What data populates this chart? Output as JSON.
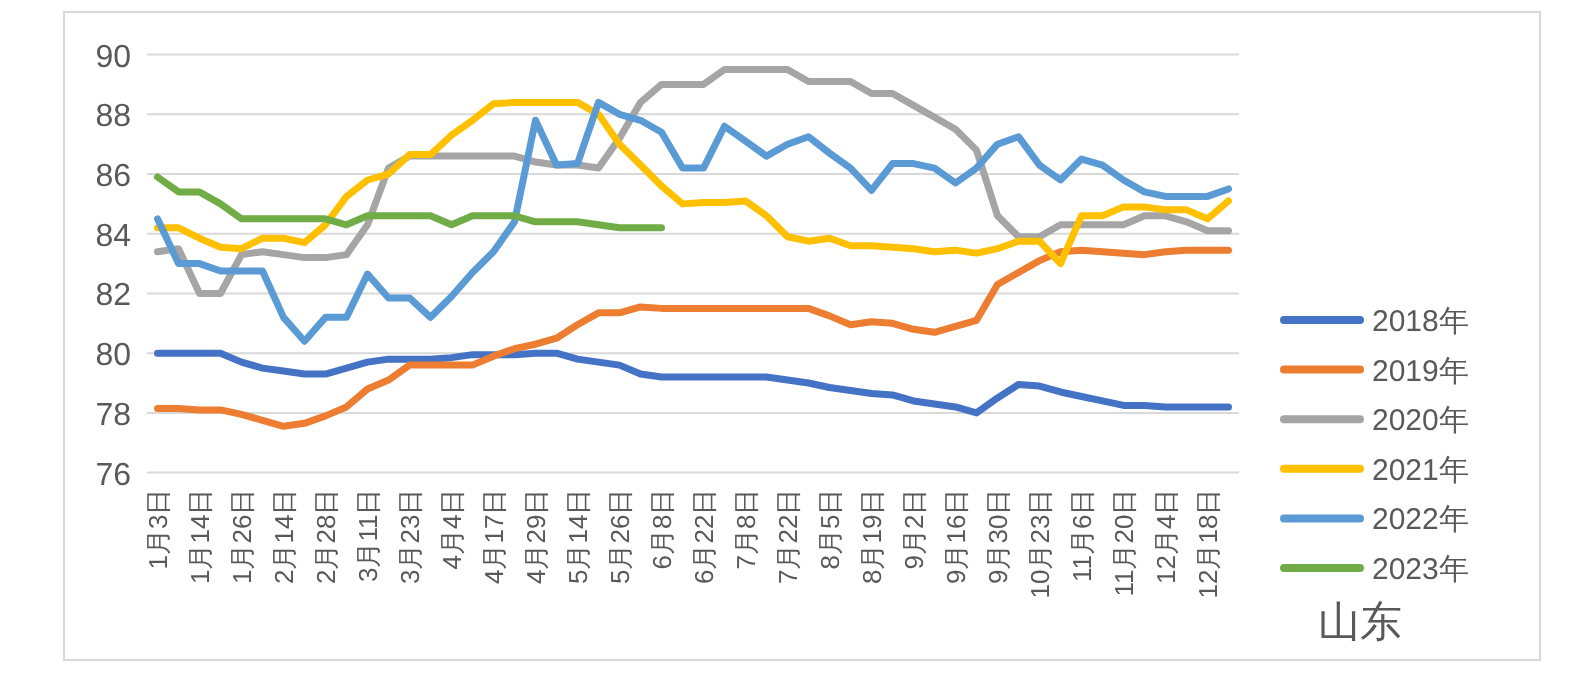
{
  "chart_data": {
    "type": "line",
    "categories": [
      "1月3日",
      null,
      "1月14日",
      null,
      "1月26日",
      null,
      "2月14日",
      null,
      "2月28日",
      null,
      "3月11日",
      null,
      "3月23日",
      null,
      "4月4日",
      null,
      "4月17日",
      null,
      "4月29日",
      null,
      "5月14日",
      null,
      "5月26日",
      null,
      "6月8日",
      null,
      "6月22日",
      null,
      "7月8日",
      null,
      "7月22日",
      null,
      "8月5日",
      null,
      "8月19日",
      null,
      "9月2日",
      null,
      "9月16日",
      null,
      "9月30日",
      null,
      "10月23日",
      null,
      "11月6日",
      null,
      "11月20日",
      null,
      "12月4日",
      null,
      "12月18日",
      null
    ],
    "series": [
      {
        "name": "2018年",
        "color": "#4472c4",
        "values": [
          80.0,
          80.0,
          80.0,
          80.0,
          79.7,
          79.5,
          79.4,
          79.3,
          79.3,
          79.5,
          79.7,
          79.8,
          79.8,
          79.8,
          79.85,
          79.95,
          79.95,
          79.95,
          80.0,
          80.0,
          79.8,
          79.7,
          79.6,
          79.3,
          79.2,
          79.2,
          79.2,
          79.2,
          79.2,
          79.2,
          79.1,
          79.0,
          78.85,
          78.75,
          78.65,
          78.6,
          78.4,
          78.3,
          78.2,
          78.0,
          78.5,
          78.95,
          78.9,
          78.7,
          78.55,
          78.4,
          78.25,
          78.25,
          78.2,
          78.2,
          78.2,
          78.2
        ]
      },
      {
        "name": "2019年",
        "color": "#ed7d31",
        "values": [
          78.15,
          78.15,
          78.1,
          78.1,
          77.95,
          77.75,
          77.55,
          77.65,
          77.9,
          78.2,
          78.8,
          79.1,
          79.6,
          79.6,
          79.6,
          79.6,
          79.9,
          80.15,
          80.3,
          80.5,
          80.95,
          81.35,
          81.35,
          81.55,
          81.5,
          81.5,
          81.5,
          81.5,
          81.5,
          81.5,
          81.5,
          81.5,
          81.25,
          80.95,
          81.05,
          81.0,
          80.8,
          80.7,
          80.9,
          81.1,
          82.3,
          82.7,
          83.1,
          83.4,
          83.45,
          83.4,
          83.35,
          83.3,
          83.4,
          83.45,
          83.45,
          83.45
        ]
      },
      {
        "name": "2020年",
        "color": "#a5a5a5",
        "values": [
          83.4,
          83.5,
          82.0,
          82.0,
          83.3,
          83.4,
          83.3,
          83.2,
          83.2,
          83.3,
          84.3,
          86.2,
          86.6,
          86.6,
          86.6,
          86.6,
          86.6,
          86.6,
          86.4,
          86.3,
          86.3,
          86.2,
          87.2,
          88.4,
          89.0,
          89.0,
          89.0,
          89.5,
          89.5,
          89.5,
          89.5,
          89.1,
          89.1,
          89.1,
          88.7,
          88.7,
          88.3,
          87.9,
          87.5,
          86.8,
          84.6,
          83.9,
          83.9,
          84.3,
          84.3,
          84.3,
          84.3,
          84.6,
          84.6,
          84.4,
          84.1,
          84.1
        ]
      },
      {
        "name": "2021年",
        "color": "#ffc000",
        "values": [
          84.2,
          84.2,
          83.85,
          83.55,
          83.5,
          83.85,
          83.85,
          83.7,
          84.3,
          85.25,
          85.8,
          86.0,
          86.65,
          86.65,
          87.3,
          87.8,
          88.35,
          88.4,
          88.4,
          88.4,
          88.4,
          88.0,
          87.0,
          86.3,
          85.6,
          85.0,
          85.05,
          85.05,
          85.1,
          84.6,
          83.9,
          83.75,
          83.85,
          83.6,
          83.6,
          83.55,
          83.5,
          83.4,
          83.45,
          83.35,
          83.5,
          83.75,
          83.75,
          83.0,
          84.6,
          84.6,
          84.9,
          84.9,
          84.8,
          84.8,
          84.5,
          85.1
        ]
      },
      {
        "name": "2022年",
        "color": "#5b9bd5",
        "values": [
          84.5,
          83.0,
          83.0,
          82.75,
          82.75,
          82.75,
          81.2,
          80.4,
          81.2,
          81.2,
          82.65,
          81.85,
          81.85,
          81.2,
          81.9,
          82.7,
          83.4,
          84.4,
          87.8,
          86.3,
          86.35,
          88.4,
          88.0,
          87.8,
          87.4,
          86.2,
          86.2,
          87.6,
          87.1,
          86.6,
          87.0,
          87.25,
          86.7,
          86.2,
          85.45,
          86.35,
          86.35,
          86.2,
          85.7,
          86.2,
          87.0,
          87.25,
          86.3,
          85.8,
          86.5,
          86.3,
          85.8,
          85.4,
          85.25,
          85.25,
          85.25,
          85.5
        ]
      },
      {
        "name": "2023年",
        "color": "#70ad47",
        "values": [
          85.9,
          85.4,
          85.4,
          85.0,
          84.5,
          84.5,
          84.5,
          84.5,
          84.5,
          84.3,
          84.6,
          84.6,
          84.6,
          84.6,
          84.3,
          84.6,
          84.6,
          84.6,
          84.4,
          84.4,
          84.4,
          84.3,
          84.2,
          84.2,
          84.2,
          null,
          null,
          null,
          null,
          null,
          null,
          null,
          null,
          null,
          null,
          null,
          null,
          null,
          null,
          null,
          null,
          null,
          null,
          null,
          null,
          null,
          null,
          null,
          null,
          null,
          null,
          null
        ]
      }
    ],
    "ylim": [
      76,
      90
    ],
    "yticks": [
      76,
      78,
      80,
      82,
      84,
      86,
      88,
      90
    ],
    "grid": "y",
    "legend": "right",
    "marker": "none",
    "line_style": "solid",
    "annotations": [
      "山东"
    ]
  }
}
